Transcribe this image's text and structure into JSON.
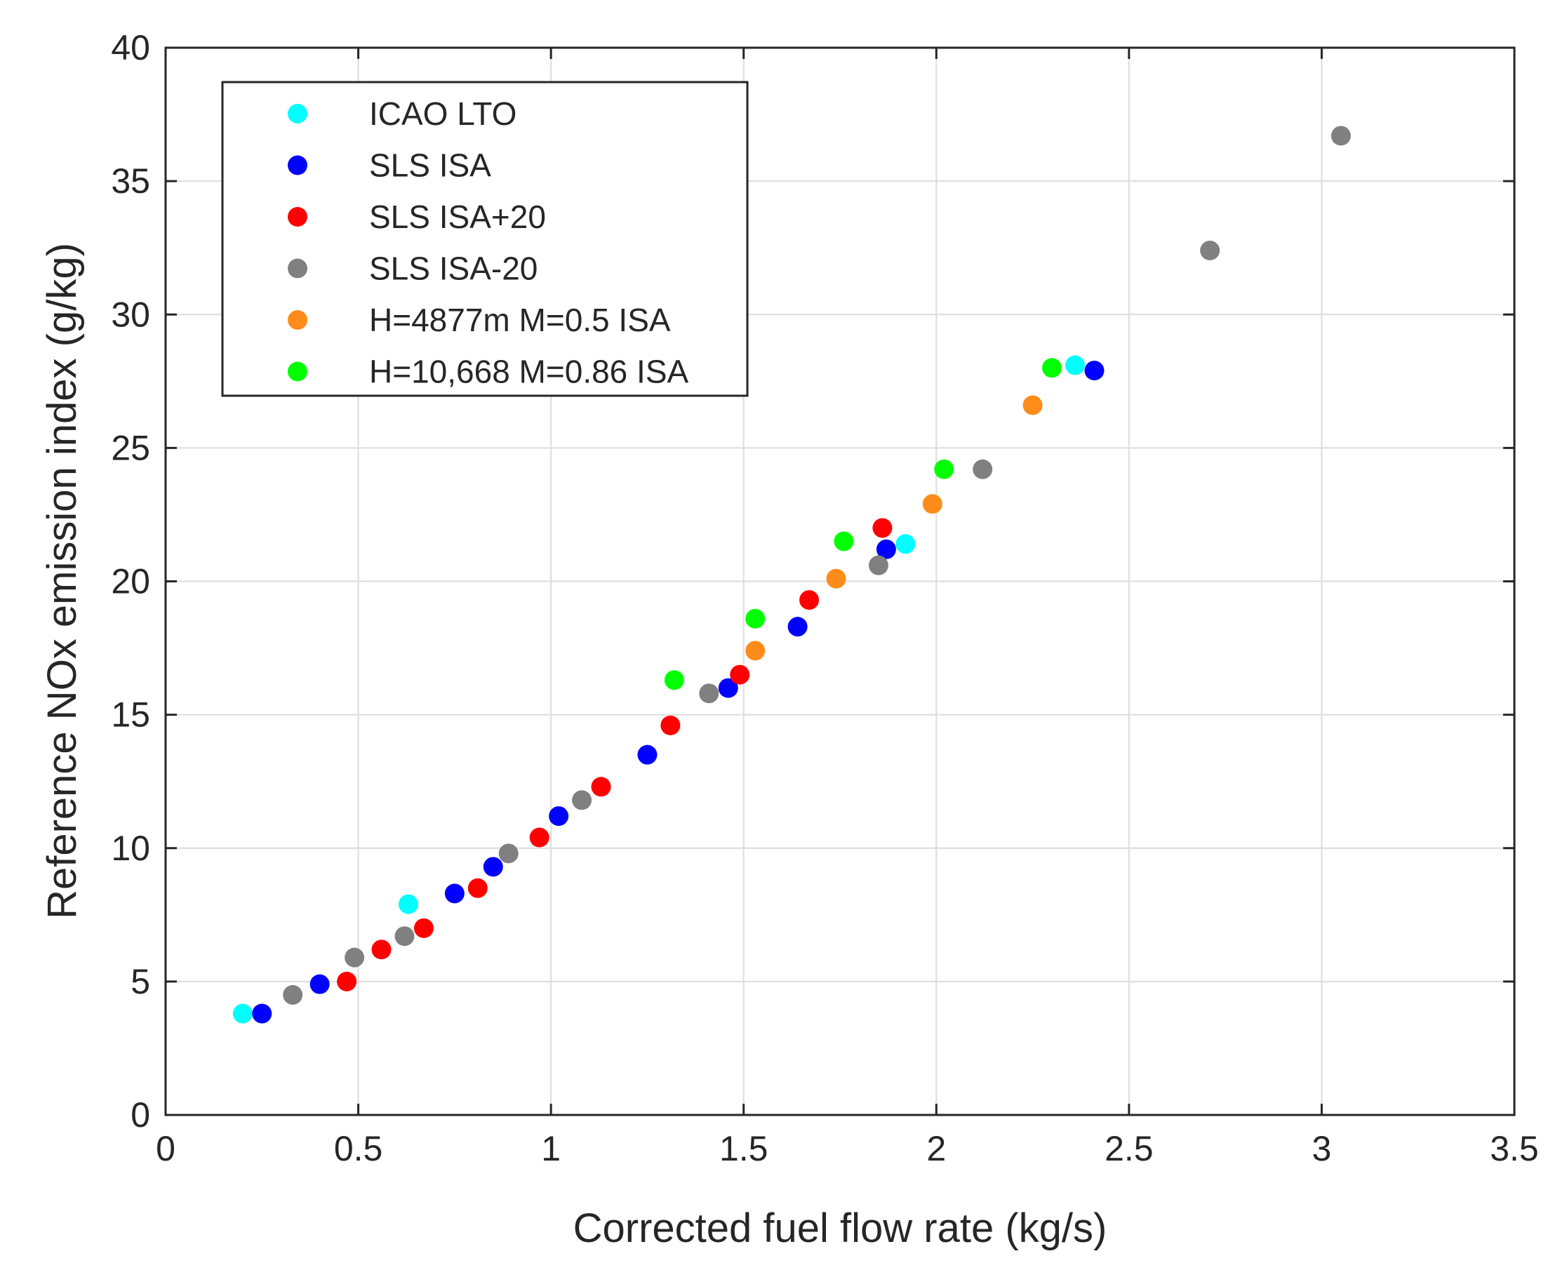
{
  "chart_data": {
    "type": "scatter",
    "title": "",
    "xlabel": "Corrected fuel flow rate (kg/s)",
    "ylabel": "Reference NOx emission index (g/kg)",
    "xlim": [
      0,
      3.5
    ],
    "ylim": [
      0,
      40
    ],
    "xticks": [
      0,
      0.5,
      1,
      1.5,
      2,
      2.5,
      3,
      3.5
    ],
    "xtick_labels": [
      "0",
      "0.5",
      "1",
      "1.5",
      "2",
      "2.5",
      "3",
      "3.5"
    ],
    "yticks": [
      0,
      5,
      10,
      15,
      20,
      25,
      30,
      35,
      40
    ],
    "ytick_labels": [
      "0",
      "5",
      "10",
      "15",
      "20",
      "25",
      "30",
      "35",
      "40"
    ],
    "grid": true,
    "legend_position": "top-left",
    "series": [
      {
        "name": "ICAO LTO",
        "color": "#00ffff",
        "x": [
          0.2,
          0.63,
          1.92,
          2.36
        ],
        "y": [
          3.8,
          7.9,
          21.4,
          28.1
        ]
      },
      {
        "name": "SLS ISA",
        "color": "#0000ff",
        "x": [
          0.25,
          0.4,
          0.75,
          0.85,
          1.02,
          1.25,
          1.46,
          1.64,
          1.87,
          2.41
        ],
        "y": [
          3.8,
          4.9,
          8.3,
          9.3,
          11.2,
          13.5,
          16.0,
          18.3,
          21.2,
          27.9
        ]
      },
      {
        "name": "SLS ISA+20",
        "color": "#ff0000",
        "x": [
          0.47,
          0.56,
          0.67,
          0.81,
          0.97,
          1.13,
          1.31,
          1.49,
          1.67,
          1.86
        ],
        "y": [
          5.0,
          6.2,
          7.0,
          8.5,
          10.4,
          12.3,
          14.6,
          16.5,
          19.3,
          22.0
        ]
      },
      {
        "name": "SLS ISA-20",
        "color": "#808080",
        "x": [
          0.33,
          0.49,
          0.62,
          0.89,
          1.08,
          1.41,
          1.85,
          2.12,
          2.71,
          3.05
        ],
        "y": [
          4.5,
          5.9,
          6.7,
          9.8,
          11.8,
          15.8,
          20.6,
          24.2,
          32.4,
          36.7
        ]
      },
      {
        "name": "H=4877m M=0.5 ISA",
        "color": "#ff8c1a",
        "x": [
          1.53,
          1.74,
          1.99,
          2.25
        ],
        "y": [
          17.4,
          20.1,
          22.9,
          26.6
        ]
      },
      {
        "name": "H=10,668 M=0.86 ISA",
        "color": "#00ff00",
        "x": [
          1.32,
          1.53,
          1.76,
          2.02,
          2.3
        ],
        "y": [
          16.3,
          18.6,
          21.5,
          24.2,
          28.0
        ]
      }
    ]
  }
}
